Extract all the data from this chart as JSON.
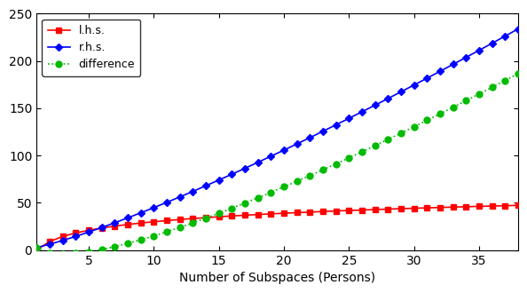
{
  "x_values": [
    1,
    2,
    3,
    4,
    5,
    6,
    7,
    8,
    9,
    10,
    11,
    12,
    13,
    14,
    15,
    16,
    17,
    18,
    19,
    20,
    21,
    22,
    23,
    24,
    25,
    26,
    27,
    28,
    29,
    30,
    31,
    32,
    33,
    34,
    35,
    36,
    37,
    38
  ],
  "title": "",
  "xlabel": "Number of Subspaces (Persons)",
  "ylabel": "",
  "xlim": [
    1,
    38
  ],
  "ylim": [
    0,
    250
  ],
  "xticks": [
    5,
    10,
    15,
    20,
    25,
    30,
    35
  ],
  "yticks": [
    0,
    50,
    100,
    150,
    200,
    250
  ],
  "lhs_color": "#ff0000",
  "rhs_color": "#0000ff",
  "diff_color": "#00bb00",
  "lhs_label": "l.h.s.",
  "rhs_label": "r.h.s.",
  "diff_label": "difference",
  "d": 64,
  "background_color": "#ffffff"
}
